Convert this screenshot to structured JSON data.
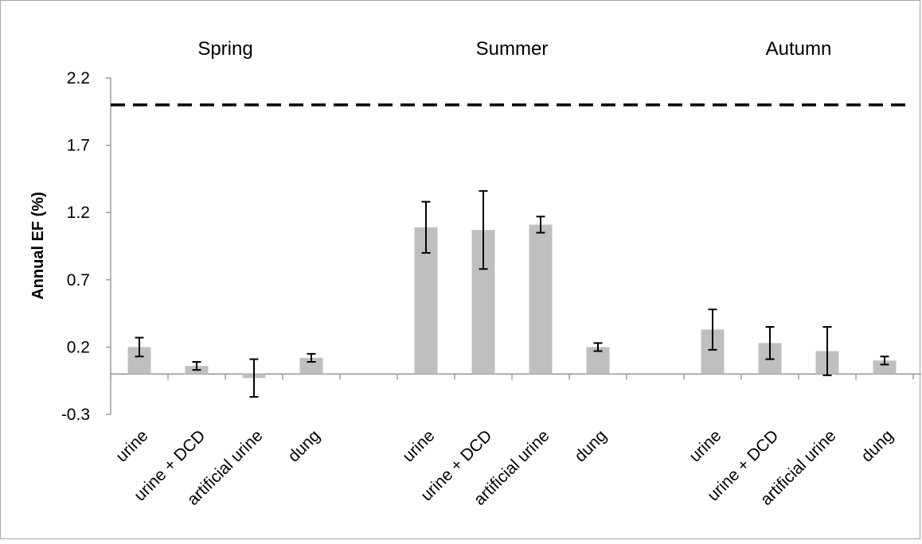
{
  "chart_data": {
    "type": "bar",
    "title": "",
    "ylabel": "Annual EF (%)",
    "xlabel": "",
    "ylim": [
      -0.3,
      2.2
    ],
    "yticks": [
      "2.2",
      "1.7",
      "1.2",
      "0.7",
      "0.2",
      "-0.3"
    ],
    "ytick_values": [
      2.2,
      1.7,
      1.2,
      0.7,
      0.2,
      -0.3
    ],
    "grid": false,
    "reference_line": {
      "value": 2.0,
      "style": "dashed",
      "color": "#000000"
    },
    "bar_color": "#bfbfbf",
    "groups": [
      {
        "name": "Spring",
        "categories": [
          "urine",
          "urine + DCD",
          "artificial urine",
          "dung"
        ],
        "values": [
          0.2,
          0.06,
          -0.03,
          0.12
        ],
        "errors": [
          0.07,
          0.03,
          0.14,
          0.03
        ]
      },
      {
        "name": "Summer",
        "categories": [
          "urine",
          "urine + DCD",
          "artificial urine",
          "dung"
        ],
        "values": [
          1.09,
          1.07,
          1.11,
          0.2
        ],
        "errors": [
          0.19,
          0.29,
          0.06,
          0.03
        ]
      },
      {
        "name": "Autumn",
        "categories": [
          "urine",
          "urine + DCD",
          "artificial urine",
          "dung"
        ],
        "values": [
          0.33,
          0.23,
          0.17,
          0.1
        ],
        "errors": [
          0.15,
          0.12,
          0.18,
          0.03
        ]
      }
    ]
  }
}
